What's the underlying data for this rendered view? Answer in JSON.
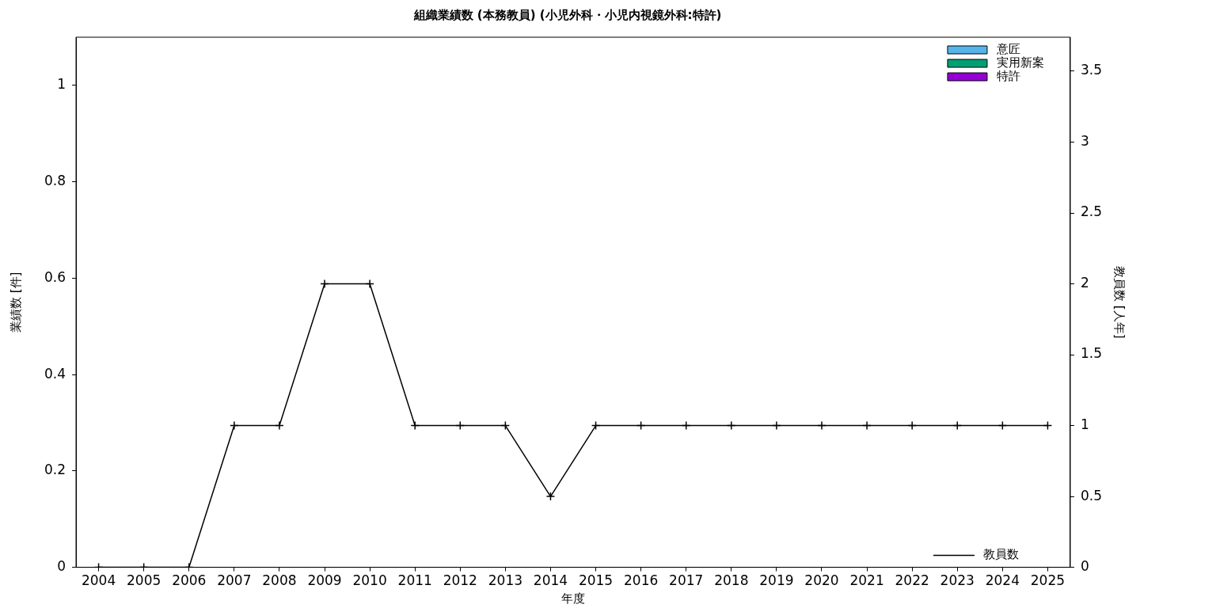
{
  "chart_data": {
    "type": "bar",
    "title": "組織業績数 (本務教員) (小児外科・小児内視鏡外科:特許)",
    "xlabel": "年度",
    "ylabel": "業績数 [件]",
    "y2label": "教員数 [人年]",
    "categories": [
      "2004",
      "2005",
      "2006",
      "2007",
      "2008",
      "2009",
      "2010",
      "2011",
      "2012",
      "2013",
      "2014",
      "2015",
      "2016",
      "2017",
      "2018",
      "2019",
      "2020",
      "2021",
      "2022",
      "2023",
      "2024",
      "2025"
    ],
    "legend": "top right",
    "grid": false,
    "ylim": [
      0,
      1.1
    ],
    "yticks": [
      0,
      0.2,
      0.4,
      0.6,
      0.8,
      1
    ],
    "y2lim": [
      0,
      3.74
    ],
    "y2ticks": [
      0,
      0.5,
      1,
      1.5,
      2,
      2.5,
      3,
      3.5
    ],
    "series": [
      {
        "name": "意匠",
        "color": "#56b4e9",
        "values": [
          0,
          0,
          0,
          0,
          0,
          0,
          0,
          0,
          0,
          0,
          0,
          0,
          0,
          0,
          0,
          0,
          0,
          0,
          0,
          0,
          0,
          0
        ]
      },
      {
        "name": "実用新案",
        "color": "#009e73",
        "values": [
          0,
          0,
          0,
          0,
          0,
          0,
          0,
          0,
          0,
          0,
          0,
          0,
          0,
          0,
          0,
          0,
          0,
          0,
          0,
          0,
          0,
          0
        ]
      },
      {
        "name": "特許",
        "color": "#9400d3",
        "values": [
          0,
          0,
          0,
          0,
          0,
          0,
          0,
          0,
          0,
          0,
          0,
          0,
          0,
          0,
          0,
          0,
          0,
          0,
          0,
          0,
          0,
          0
        ]
      },
      {
        "name": "教員数",
        "type": "line",
        "axis": "y2",
        "color": "#000000",
        "marker": "cross",
        "values": [
          0,
          0,
          0,
          1,
          1,
          2,
          2,
          1,
          1,
          1,
          0.5,
          1,
          1,
          1,
          1,
          1,
          1,
          1,
          1,
          1,
          1,
          1
        ]
      }
    ]
  }
}
